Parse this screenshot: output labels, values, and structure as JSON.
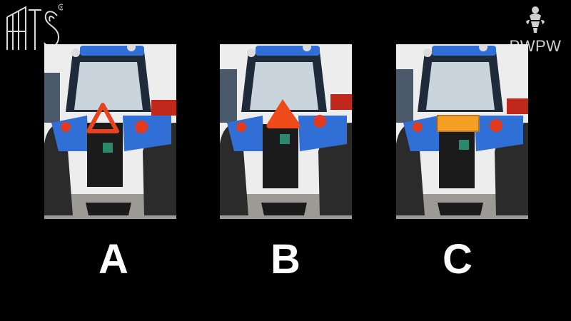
{
  "logos": {
    "left": {
      "text": "ATS",
      "mark": "®",
      "icon": "ats-logo-icon"
    },
    "right": {
      "text": "PWPW",
      "icon": "pwpw-eagle-icon"
    }
  },
  "options": [
    {
      "label": "A",
      "sign": "reflective-warning-triangle",
      "sign_color": "#e8431e"
    },
    {
      "label": "B",
      "sign": "slow-moving-vehicle-triangle",
      "sign_color": "#ee4a1a"
    },
    {
      "label": "C",
      "sign": "orange-rectangular-plate",
      "sign_color": "#f4a024"
    }
  ],
  "colors": {
    "background": "#000000",
    "tractor_blue": "#2f6fd6",
    "label_text": "#ffffff"
  }
}
